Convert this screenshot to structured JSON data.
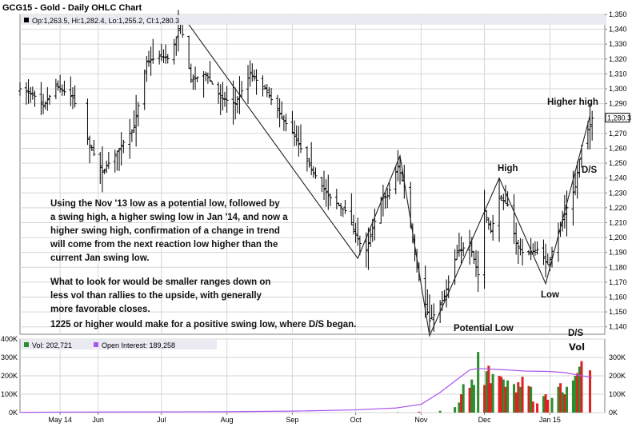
{
  "chart_data": [
    {
      "type": "ohlc",
      "title": "GCG15 - Gold - Daily OHLC Chart",
      "legend": "Op:1,263.5, Hi:1,282.4, Lo:1,255.2, Cl:1,280.3",
      "last_price_label": "1,280.3",
      "last_price": 1280.3,
      "ylim": [
        1135,
        1350
      ],
      "y_ticks": [
        1140,
        1150,
        1160,
        1170,
        1180,
        1190,
        1200,
        1210,
        1220,
        1230,
        1240,
        1250,
        1260,
        1270,
        1280,
        1290,
        1300,
        1310,
        1320,
        1330,
        1340,
        1350
      ],
      "y_tick_labels": [
        "1,140",
        "1,150",
        "1,160",
        "1,170",
        "1,180",
        "1,190",
        "1,200",
        "1,210",
        "1,220",
        "1,230",
        "1,240",
        "1,250",
        "1,260",
        "1,270",
        "1,280",
        "1,290",
        "1,300",
        "1,310",
        "1,320",
        "1,330",
        "1,340",
        "1,350"
      ],
      "x_domain": [
        "2014-04-25",
        "2015-01-27"
      ],
      "x_ticks": [
        {
          "date": "2014-05-14",
          "label": "May 14"
        },
        {
          "date": "2014-06-01",
          "label": "Jun"
        },
        {
          "date": "2014-07-01",
          "label": "Jul"
        },
        {
          "date": "2014-08-01",
          "label": "Aug"
        },
        {
          "date": "2014-09-01",
          "label": "Sep"
        },
        {
          "date": "2014-10-01",
          "label": "Oct"
        },
        {
          "date": "2014-11-01",
          "label": "Nov"
        },
        {
          "date": "2014-12-01",
          "label": "Dec"
        },
        {
          "date": "2015-01-01",
          "label": "Jan 15"
        }
      ],
      "price_path": [
        [
          "2014-04-25",
          1300
        ],
        [
          "2014-05-02",
          1295
        ],
        [
          "2014-05-06",
          1288
        ],
        [
          "2014-05-12",
          1302
        ],
        [
          "2014-05-20",
          1294
        ],
        [
          "2014-05-28",
          1262
        ],
        [
          "2014-06-03",
          1244
        ],
        [
          "2014-06-10",
          1258
        ],
        [
          "2014-06-18",
          1274
        ],
        [
          "2014-06-24",
          1318
        ],
        [
          "2014-06-30",
          1322
        ],
        [
          "2014-07-05",
          1320
        ],
        [
          "2014-07-10",
          1344
        ],
        [
          "2014-07-15",
          1306
        ],
        [
          "2014-07-22",
          1310
        ],
        [
          "2014-07-29",
          1294
        ],
        [
          "2014-08-05",
          1290
        ],
        [
          "2014-08-12",
          1310
        ],
        [
          "2014-08-19",
          1300
        ],
        [
          "2014-08-26",
          1283
        ],
        [
          "2014-09-02",
          1268
        ],
        [
          "2014-09-10",
          1246
        ],
        [
          "2014-09-18",
          1228
        ],
        [
          "2014-09-26",
          1218
        ],
        [
          "2014-10-03",
          1196
        ],
        [
          "2014-10-06",
          1191
        ],
        [
          "2014-10-13",
          1226
        ],
        [
          "2014-10-16",
          1228
        ],
        [
          "2014-10-21",
          1248
        ],
        [
          "2014-10-24",
          1234
        ],
        [
          "2014-10-31",
          1172
        ],
        [
          "2014-11-05",
          1144
        ],
        [
          "2014-11-07",
          1148
        ],
        [
          "2014-11-12",
          1160
        ],
        [
          "2014-11-18",
          1190
        ],
        [
          "2014-11-24",
          1196
        ],
        [
          "2014-11-28",
          1175
        ],
        [
          "2014-12-01",
          1218
        ],
        [
          "2014-12-04",
          1204
        ],
        [
          "2014-12-08",
          1226
        ],
        [
          "2014-12-12",
          1222
        ],
        [
          "2014-12-16",
          1196
        ],
        [
          "2014-12-20",
          1188
        ],
        [
          "2014-12-26",
          1192
        ],
        [
          "2014-12-31",
          1182
        ],
        [
          "2015-01-05",
          1204
        ],
        [
          "2015-01-09",
          1220
        ],
        [
          "2015-01-13",
          1234
        ],
        [
          "2015-01-16",
          1262
        ],
        [
          "2015-01-20",
          1276
        ],
        [
          "2015-01-21",
          1280.3
        ]
      ],
      "gaps": [
        [
          "2014-05-22",
          "2014-05-26"
        ]
      ],
      "volume_panel": {
        "legend_volume": "Vol: 202,721",
        "legend_open_interest": "Open Interest: 189,258",
        "ylim": [
          0,
          400000
        ],
        "left_tick_labels": [
          "0K",
          "100K",
          "200K",
          "300K",
          "400K"
        ],
        "right_tick_labels": [
          "0K",
          "100K",
          "200K",
          "300K"
        ],
        "volume_bars": [
          [
            "2014-10-21",
            2000
          ],
          [
            "2014-10-31",
            5000
          ],
          [
            "2014-11-10",
            10000
          ],
          [
            "2014-11-17",
            30000
          ],
          [
            "2014-11-19",
            55000
          ],
          [
            "2014-11-20",
            100000
          ],
          [
            "2014-11-21",
            155000
          ],
          [
            "2014-11-24",
            135000
          ],
          [
            "2014-11-25",
            180000
          ],
          [
            "2014-11-26",
            150000
          ],
          [
            "2014-11-28",
            330000
          ],
          [
            "2014-12-01",
            150000
          ],
          [
            "2014-12-02",
            225000
          ],
          [
            "2014-12-03",
            255000
          ],
          [
            "2014-12-04",
            160000
          ],
          [
            "2014-12-05",
            210000
          ],
          [
            "2014-12-08",
            200000
          ],
          [
            "2014-12-09",
            195000
          ],
          [
            "2014-12-10",
            180000
          ],
          [
            "2014-12-11",
            140000
          ],
          [
            "2014-12-12",
            175000
          ],
          [
            "2014-12-15",
            155000
          ],
          [
            "2014-12-16",
            110000
          ],
          [
            "2014-12-17",
            165000
          ],
          [
            "2014-12-18",
            140000
          ],
          [
            "2014-12-19",
            195000
          ],
          [
            "2014-12-22",
            145000
          ],
          [
            "2014-12-23",
            140000
          ],
          [
            "2014-12-24",
            60000
          ],
          [
            "2014-12-26",
            50000
          ],
          [
            "2014-12-29",
            90000
          ],
          [
            "2014-12-30",
            100000
          ],
          [
            "2014-12-31",
            70000
          ],
          [
            "2015-01-02",
            80000
          ],
          [
            "2015-01-05",
            140000
          ],
          [
            "2015-01-06",
            160000
          ],
          [
            "2015-01-07",
            110000
          ],
          [
            "2015-01-08",
            100000
          ],
          [
            "2015-01-09",
            140000
          ],
          [
            "2015-01-12",
            175000
          ],
          [
            "2015-01-13",
            200000
          ],
          [
            "2015-01-14",
            215000
          ],
          [
            "2015-01-15",
            250000
          ],
          [
            "2015-01-16",
            280000
          ],
          [
            "2015-01-20",
            230000
          ]
        ],
        "open_interest": [
          [
            "2014-04-25",
            2000
          ],
          [
            "2014-08-01",
            5000
          ],
          [
            "2014-09-01",
            8000
          ],
          [
            "2014-10-01",
            15000
          ],
          [
            "2014-10-20",
            25000
          ],
          [
            "2014-11-01",
            45000
          ],
          [
            "2014-11-10",
            110000
          ],
          [
            "2014-11-18",
            180000
          ],
          [
            "2014-11-24",
            232000
          ],
          [
            "2014-11-28",
            240000
          ],
          [
            "2014-12-05",
            236000
          ],
          [
            "2014-12-12",
            232000
          ],
          [
            "2014-12-20",
            226000
          ],
          [
            "2014-12-31",
            224000
          ],
          [
            "2015-01-08",
            218000
          ],
          [
            "2015-01-14",
            205000
          ],
          [
            "2015-01-20",
            192000
          ],
          [
            "2015-01-21",
            189258
          ]
        ]
      },
      "vol_label": "Vol"
    }
  ],
  "annotations": {
    "text_block_1": [
      "Using the Nov '13 low as a potential low, followed by",
      "a swing high, a higher swing low in Jan '14, and now a",
      "higher swing high, confirmation of a change in trend",
      "will come from the next reaction low higher than the",
      "current Jan swing low."
    ],
    "text_block_2": [
      "What to look for would be smaller ranges down on",
      "less vol than rallies to the upside, with generally",
      "more favorable closes."
    ],
    "text_block_3": "1225 or higher would make for a positive swing low, where D/S began.",
    "labels": [
      {
        "id": "high",
        "text": "High"
      },
      {
        "id": "higher-high",
        "text": "Higher high"
      },
      {
        "id": "ds-price",
        "text": "D/S"
      },
      {
        "id": "low",
        "text": "Low"
      },
      {
        "id": "potential-low",
        "text": "Potential Low"
      },
      {
        "id": "ds-volume",
        "text": "D/S"
      }
    ]
  },
  "trendlines": [
    [
      [
        "2014-07-12",
        1347
      ],
      [
        "2014-10-02",
        1186
      ],
      [
        "2014-10-22",
        1255
      ],
      [
        "2014-11-05",
        1134
      ],
      [
        "2014-12-08",
        1240
      ],
      [
        "2014-12-30",
        1169
      ],
      [
        "2015-01-20",
        1282
      ]
    ]
  ],
  "colors": {
    "up_volume": "#2e8b2e",
    "down_volume": "#dd2222",
    "open_interest": "#aa55ee",
    "price_bars": "#000000",
    "grid": "#d6d6d6",
    "annotation_text": "#000000"
  }
}
